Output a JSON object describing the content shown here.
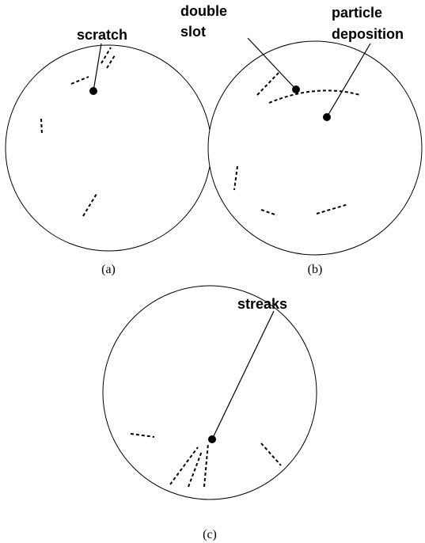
{
  "panels": [
    {
      "label": "(a)",
      "callouts": [
        {
          "lines": [
            "scratch"
          ]
        }
      ]
    },
    {
      "label": "(b)",
      "callouts": [
        {
          "lines": [
            "double",
            "slot"
          ]
        },
        {
          "lines": [
            "particle",
            "deposition"
          ]
        }
      ]
    },
    {
      "label": "(c)",
      "callouts": [
        {
          "lines": [
            "streaks"
          ]
        }
      ]
    }
  ]
}
